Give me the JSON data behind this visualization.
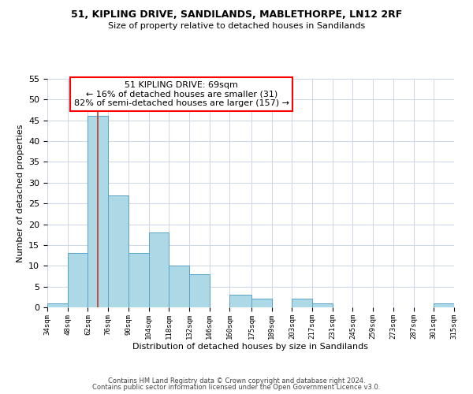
{
  "title": "51, KIPLING DRIVE, SANDILANDS, MABLETHORPE, LN12 2RF",
  "subtitle": "Size of property relative to detached houses in Sandilands",
  "xlabel": "Distribution of detached houses by size in Sandilands",
  "ylabel": "Number of detached properties",
  "footer_line1": "Contains HM Land Registry data © Crown copyright and database right 2024.",
  "footer_line2": "Contains public sector information licensed under the Open Government Licence v3.0.",
  "annotation_line1": "51 KIPLING DRIVE: 69sqm",
  "annotation_line2": "← 16% of detached houses are smaller (31)",
  "annotation_line3": "82% of semi-detached houses are larger (157) →",
  "bar_color": "#add8e6",
  "bar_edge_color": "#5ba3c9",
  "red_line_color": "#c0392b",
  "red_line_x": 69,
  "bins": [
    34,
    48,
    62,
    76,
    90,
    104,
    118,
    132,
    146,
    160,
    175,
    189,
    203,
    217,
    231,
    245,
    259,
    273,
    287,
    301,
    315
  ],
  "counts": [
    1,
    13,
    46,
    27,
    13,
    18,
    10,
    8,
    0,
    3,
    2,
    0,
    2,
    1,
    0,
    0,
    0,
    0,
    0,
    1
  ],
  "ylim": [
    0,
    55
  ],
  "yticks": [
    0,
    5,
    10,
    15,
    20,
    25,
    30,
    35,
    40,
    45,
    50,
    55
  ],
  "xtick_labels": [
    "34sqm",
    "48sqm",
    "62sqm",
    "76sqm",
    "90sqm",
    "104sqm",
    "118sqm",
    "132sqm",
    "146sqm",
    "160sqm",
    "175sqm",
    "189sqm",
    "203sqm",
    "217sqm",
    "231sqm",
    "245sqm",
    "259sqm",
    "273sqm",
    "287sqm",
    "301sqm",
    "315sqm"
  ],
  "background_color": "#ffffff",
  "grid_color": "#ccd6e8"
}
